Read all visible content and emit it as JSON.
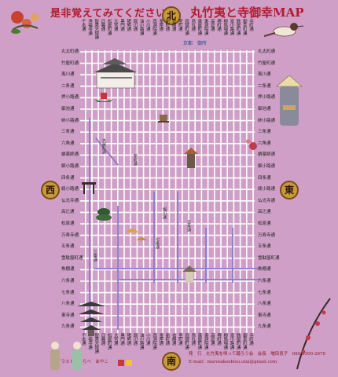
{
  "header": {
    "left_title": "是非覚えてみてください。",
    "right_title": "丸竹夷と寺御幸MAP"
  },
  "compass": {
    "north": "北",
    "south": "南",
    "west": "西",
    "east": "東"
  },
  "top_streets": [
    "寺町通",
    "御幸町通",
    "麩屋町通",
    "富小路通",
    "柳馬場通",
    "堺町通",
    "高倉通",
    "東洞院通",
    "車屋町通",
    "烏丸通",
    "両替町通",
    "室町通",
    "衣棚通",
    "新町通",
    "釜座通",
    "西洞院通",
    "小川通",
    "油小路通",
    "堀川通",
    "猪熊通",
    "黒門通",
    "大宮通",
    "松屋町通",
    "日暮通",
    "智恵光院通",
    "浄福寺通",
    "千本通"
  ],
  "left_streets": [
    "丸太町通",
    "竹屋町通",
    "夷川通",
    "二条通",
    "押小路通",
    "御池通",
    "姉小路通",
    "三条通",
    "六角通",
    "蛸薬師通",
    "錦小路通",
    "四条通",
    "綾小路通",
    "仏光寺通",
    "高辻通",
    "松原通",
    "万寿寺通",
    "五条通",
    "雪駄屋町通",
    "魚棚通",
    "六条通",
    "七条通",
    "八条通",
    "東寺通",
    "九条通"
  ],
  "right_streets": [
    "丸太町通",
    "竹屋町通",
    "夷川通",
    "二条通",
    "押小路通",
    "御池通",
    "姉小路通",
    "三条通",
    "六角通",
    "蛸薬師通",
    "錦小路通",
    "四条通",
    "綾小路通",
    "仏光寺通",
    "高辻通",
    "松原通",
    "万寿寺通",
    "五条通",
    "雪駄屋町通",
    "魚棚通",
    "六条通",
    "七条通",
    "八条通",
    "東寺通",
    "九条通"
  ],
  "street_tags": {
    "kiyamachi": "木屋町通",
    "shinmachi": "新町通",
    "horikawa": "堀川通",
    "gojo": "五条通",
    "sanjo": "三条通",
    "shichijo": "七条通"
  },
  "gosho_label": "京都　御所",
  "credits": "イラスト　しらべ　あやこ",
  "footer": {
    "line1": "発　行　丸竹夷を唄って踊ろう会　会長　増田良子　080-5300-2878",
    "line2": "E-mail：marutakeebisu.utai@gmail.com"
  },
  "colors": {
    "background": "#cf9fc7",
    "street": "#ffffff",
    "avenue": "#8d78c8",
    "title": "#b01c2e"
  }
}
